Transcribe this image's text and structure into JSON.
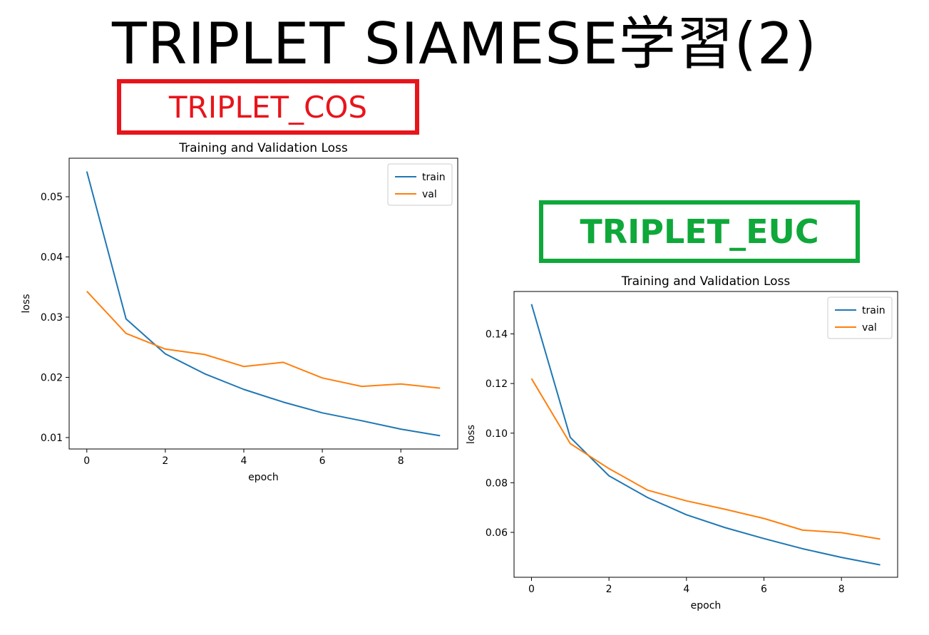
{
  "slide": {
    "title": "TRIPLET SIAMESE学習(2)",
    "label_left": "TRIPLET_COS",
    "label_right": "TRIPLET_EUC",
    "colors": {
      "cos_label": "#e8141b",
      "euc_label": "#0fa83a"
    }
  },
  "chart_data": [
    {
      "type": "line",
      "title": "Training and Validation Loss",
      "xlabel": "epoch",
      "ylabel": "loss",
      "x": [
        0,
        1,
        2,
        3,
        4,
        5,
        6,
        7,
        8,
        9
      ],
      "xlim": [
        -0.45,
        9.45
      ],
      "ylim": [
        0.0081,
        0.0564
      ],
      "xticks": [
        0,
        2,
        4,
        6,
        8
      ],
      "xtick_labels": [
        "0",
        "2",
        "4",
        "6",
        "8"
      ],
      "yticks": [
        0.01,
        0.02,
        0.03,
        0.04,
        0.05
      ],
      "ytick_labels": [
        "0.01",
        "0.02",
        "0.03",
        "0.04",
        "0.05"
      ],
      "grid": false,
      "legend": "upper right",
      "series": [
        {
          "name": "train",
          "color": "#1f77b4",
          "values": [
            0.0542,
            0.0297,
            0.0239,
            0.0206,
            0.018,
            0.0159,
            0.0141,
            0.0128,
            0.0114,
            0.0103
          ]
        },
        {
          "name": "val",
          "color": "#ff7f0e",
          "values": [
            0.0343,
            0.0273,
            0.0247,
            0.0238,
            0.0218,
            0.0225,
            0.0199,
            0.0185,
            0.0189,
            0.0182
          ]
        }
      ]
    },
    {
      "type": "line",
      "title": "Training and Validation Loss",
      "xlabel": "epoch",
      "ylabel": "loss",
      "x": [
        0,
        1,
        2,
        3,
        4,
        5,
        6,
        7,
        8,
        9
      ],
      "xlim": [
        -0.45,
        9.45
      ],
      "ylim": [
        0.0419,
        0.1571
      ],
      "xticks": [
        0,
        2,
        4,
        6,
        8
      ],
      "xtick_labels": [
        "0",
        "2",
        "4",
        "6",
        "8"
      ],
      "yticks": [
        0.06,
        0.08,
        0.1,
        0.12,
        0.14
      ],
      "ytick_labels": [
        "0.06",
        "0.08",
        "0.10",
        "0.12",
        "0.14"
      ],
      "grid": false,
      "legend": "upper right",
      "series": [
        {
          "name": "train",
          "color": "#1f77b4",
          "values": [
            0.152,
            0.0983,
            0.0828,
            0.074,
            0.0671,
            0.0619,
            0.0575,
            0.0534,
            0.0499,
            0.0469
          ]
        },
        {
          "name": "val",
          "color": "#ff7f0e",
          "values": [
            0.122,
            0.0958,
            0.0857,
            0.077,
            0.0727,
            0.0693,
            0.0656,
            0.0609,
            0.0599,
            0.0573
          ]
        }
      ]
    }
  ]
}
